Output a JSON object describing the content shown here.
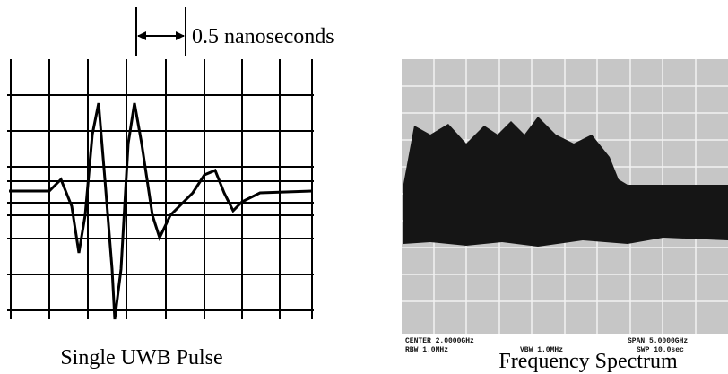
{
  "scale_marker": {
    "label": "0.5 nanoseconds"
  },
  "panels": [
    {
      "caption": "Single UWB Pulse"
    },
    {
      "caption": "Frequency Spectrum",
      "readouts": [
        "CENTER 2.0000GHz",
        "SPAN 5.0000GHz",
        "RBW 1.0MHz",
        "VBW 1.0MHz",
        "SWP 10.0sec"
      ]
    }
  ]
}
